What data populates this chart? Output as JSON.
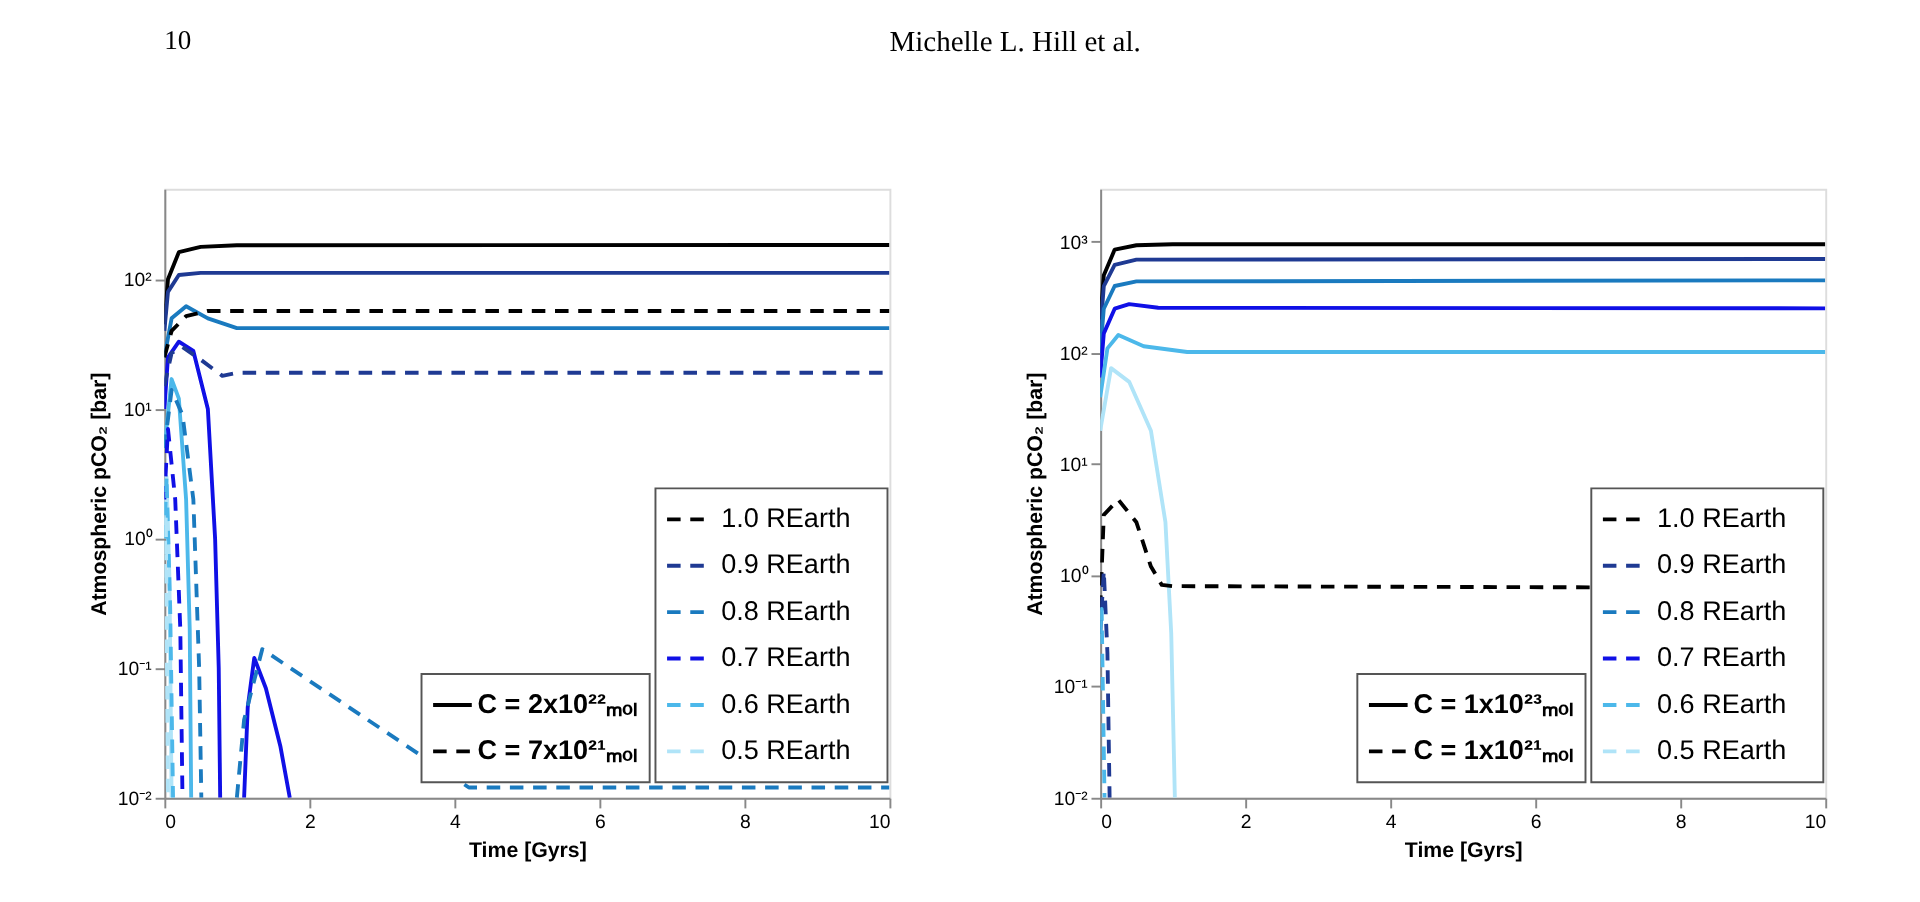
{
  "chart_data": [
    {
      "type": "other",
      "annotations": [
        "10",
        "Michelle L. Hill et al."
      ]
    },
    {
      "type": "line",
      "log": "y",
      "xlabel": "Time [Gyrs]",
      "ylabel": "Atmospheric pCO₂ [bar]",
      "xlim": [
        0,
        10
      ],
      "xticks": [
        0,
        2,
        4,
        6,
        8,
        10
      ],
      "ylim": [
        0.01,
        500
      ],
      "yticks": [
        {
          "value": 0.01,
          "label": "10⁻²"
        },
        {
          "value": 0.1,
          "label": "10⁻¹"
        },
        {
          "value": 1,
          "label": "10⁰"
        },
        {
          "value": 10,
          "label": "10¹"
        },
        {
          "value": 100,
          "label": "10²"
        }
      ],
      "legend": "bottom right",
      "annotations": [
        "C = 2x10²²ₘₒₗ",
        "C = 7x10²¹ₘₒₗ"
      ],
      "series": [
        {
          "color": "#000000",
          "line_style": "solid",
          "x": [
            0,
            0.05,
            0.2,
            0.5,
            1,
            10
          ],
          "values": [
            45,
            100,
            162,
            178,
            183,
            184
          ]
        },
        {
          "color": "#1f3a93",
          "line_style": "solid",
          "x": [
            0,
            0.05,
            0.2,
            0.5,
            10
          ],
          "values": [
            40,
            80,
            108,
            112,
            112
          ]
        },
        {
          "color": "#1a7abf",
          "line_style": "solid",
          "x": [
            0,
            0.1,
            0.3,
            0.6,
            1,
            10
          ],
          "values": [
            25,
            50,
            62,
            50,
            42,
            42
          ]
        },
        {
          "color": "#1010e6",
          "line_style": "solid",
          "x": [
            0,
            0.05,
            0.2,
            0.4,
            0.6,
            0.7,
            0.75,
            0.77,
            0.9,
            1.1,
            1.15,
            1.24,
            1.4,
            1.6,
            1.73
          ],
          "values": [
            10,
            25,
            33,
            28,
            10,
            1,
            0.1,
            0.01,
            null,
            0.01,
            0.05,
            0.12,
            0.07,
            0.025,
            0.01
          ]
        },
        {
          "color": "#4cb8ea",
          "line_style": "solid",
          "x": [
            0,
            0.1,
            0.2,
            0.3,
            0.35,
            0.37
          ],
          "values": [
            5,
            17,
            12,
            2,
            0.2,
            0.01
          ]
        },
        {
          "color": "#b0e4f8",
          "line_style": "solid",
          "x": [
            0,
            0.03,
            0.07,
            0.1
          ],
          "values": [
            1,
            3,
            0.5,
            0.01
          ]
        },
        {
          "name": "1.0 REarth",
          "color": "#000000",
          "line_style": "dashed",
          "x": [
            0,
            0.1,
            0.3,
            0.6,
            10
          ],
          "values": [
            25,
            40,
            52,
            57,
            57
          ]
        },
        {
          "name": "0.9 REarth",
          "color": "#1f3a93",
          "line_style": "dashed",
          "x": [
            0,
            0.1,
            0.25,
            0.5,
            0.8,
            1,
            10
          ],
          "values": [
            15,
            27,
            30,
            24,
            18,
            19,
            19
          ]
        },
        {
          "name": "0.8 REarth",
          "color": "#1a7abf",
          "line_style": "dashed",
          "x": [
            0,
            0.1,
            0.25,
            0.4,
            0.48,
            0.51,
            0.8,
            1.0,
            1.1,
            1.35,
            4.2,
            10
          ],
          "values": [
            5,
            14,
            9,
            2,
            0.1,
            0.01,
            null,
            0.01,
            0.04,
            0.14,
            0.012,
            0.012
          ]
        },
        {
          "name": "0.7 REarth",
          "color": "#1010e6",
          "line_style": "dashed",
          "x": [
            0,
            0.05,
            0.15,
            0.22,
            0.25
          ],
          "values": [
            2,
            7,
            2,
            0.2,
            0.01
          ]
        },
        {
          "name": "0.6 REarth",
          "color": "#4cb8ea",
          "line_style": "dashed",
          "x": [
            0,
            0.03,
            0.08,
            0.12
          ],
          "values": [
            1,
            3,
            0.3,
            0.01
          ]
        },
        {
          "name": "0.5 REarth",
          "color": "#b0e4f8",
          "line_style": "dashed",
          "x": [
            0,
            0.02,
            0.05
          ],
          "values": [
            0.5,
            1.5,
            0.01
          ]
        }
      ]
    },
    {
      "type": "line",
      "log": "y",
      "xlabel": "Time [Gyrs]",
      "ylabel": "Atmospheric pCO₂ [bar]",
      "xlim": [
        0,
        10
      ],
      "xticks": [
        0,
        2,
        4,
        6,
        8,
        10
      ],
      "ylim": [
        0.01,
        3000
      ],
      "yticks": [
        {
          "value": 0.01,
          "label": "10⁻²"
        },
        {
          "value": 0.1,
          "label": "10⁻¹"
        },
        {
          "value": 1,
          "label": "10⁰"
        },
        {
          "value": 10,
          "label": "10¹"
        },
        {
          "value": 100,
          "label": "10²"
        },
        {
          "value": 1000,
          "label": "10³"
        }
      ],
      "legend": "bottom right",
      "annotations": [
        "C = 1x10²³ₘₒₗ",
        "C = 1x10²¹ₘₒₗ"
      ],
      "series": [
        {
          "color": "#000000",
          "line_style": "solid",
          "x": [
            0,
            0.05,
            0.2,
            0.5,
            1,
            10
          ],
          "values": [
            200,
            500,
            850,
            930,
            950,
            950
          ]
        },
        {
          "color": "#1f3a93",
          "line_style": "solid",
          "x": [
            0,
            0.05,
            0.2,
            0.5,
            10
          ],
          "values": [
            150,
            400,
            620,
            690,
            700
          ]
        },
        {
          "color": "#1a7abf",
          "line_style": "solid",
          "x": [
            0,
            0.05,
            0.2,
            0.5,
            10
          ],
          "values": [
            100,
            250,
            400,
            440,
            450
          ]
        },
        {
          "color": "#1010e6",
          "line_style": "solid",
          "x": [
            0,
            0.05,
            0.2,
            0.4,
            0.8,
            10
          ],
          "values": [
            60,
            150,
            250,
            275,
            255,
            252
          ]
        },
        {
          "color": "#4cb8ea",
          "line_style": "solid",
          "x": [
            0,
            0.1,
            0.25,
            0.6,
            1.2,
            10
          ],
          "values": [
            40,
            110,
            145,
            115,
            102,
            102
          ]
        },
        {
          "color": "#b0e4f8",
          "line_style": "solid",
          "x": [
            0,
            0.15,
            0.4,
            0.7,
            0.9,
            0.98,
            1.03
          ],
          "values": [
            20,
            73,
            55,
            20,
            3,
            0.3,
            0.01
          ]
        },
        {
          "name": "1.0 REarth",
          "color": "#000000",
          "line_style": "dashed",
          "x": [
            0,
            0.05,
            0.25,
            0.5,
            0.7,
            0.85,
            1,
            10
          ],
          "values": [
            0.5,
            3.5,
            4.8,
            3,
            1.2,
            0.82,
            0.8,
            0.77
          ]
        },
        {
          "name": "0.9 REarth",
          "color": "#1f3a93",
          "line_style": "dashed",
          "x": [
            0,
            0.05,
            0.1,
            0.13
          ],
          "values": [
            0.3,
            1.1,
            0.2,
            0.01
          ]
        },
        {
          "name": "0.8 REarth",
          "color": "#1a7abf",
          "line_style": "dashed"
        },
        {
          "name": "0.7 REarth",
          "color": "#1010e6",
          "line_style": "dashed"
        },
        {
          "name": "0.6 REarth",
          "color": "#4cb8ea",
          "line_style": "dashed",
          "x": [
            0,
            0.02,
            0.06
          ],
          "values": [
            0.3,
            0.5,
            0.01
          ]
        },
        {
          "name": "0.5 REarth",
          "color": "#b0e4f8",
          "line_style": "dashed"
        }
      ]
    }
  ]
}
